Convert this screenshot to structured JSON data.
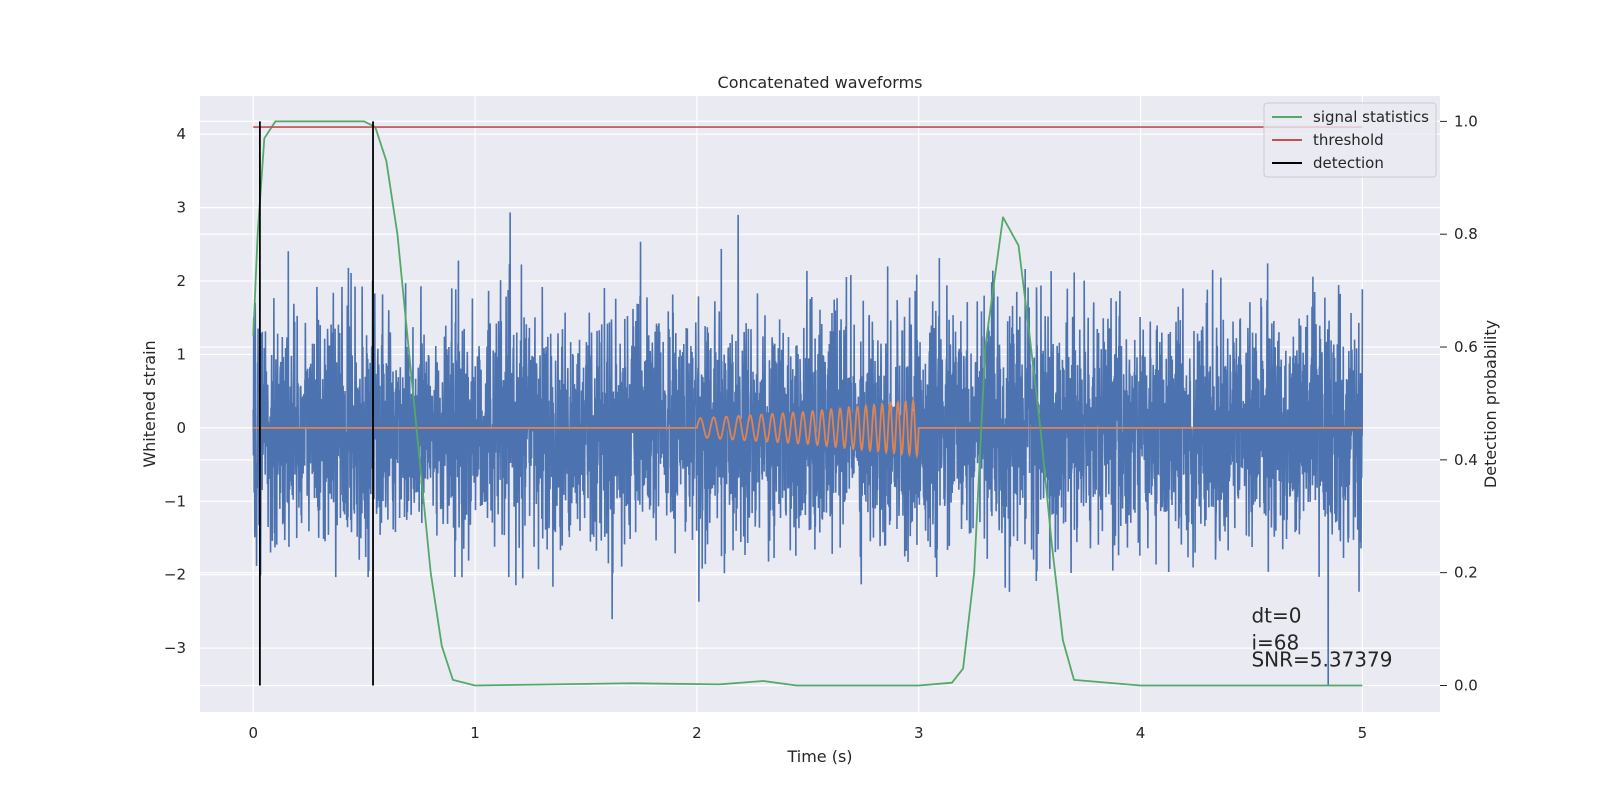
{
  "chart_data": {
    "type": "line",
    "title": "Concatenated waveforms",
    "xlabel": "Time (s)",
    "ylabel": "Whitened strain",
    "y2label": "Detection probability",
    "xlim": [
      -0.24,
      5.35
    ],
    "ylim": [
      -3.87,
      4.52
    ],
    "y2lim": [
      -0.047,
      1.045
    ],
    "xticks": [
      0,
      1,
      2,
      3,
      4,
      5
    ],
    "yticks": [
      -3,
      -2,
      -1,
      0,
      1,
      2,
      3,
      4
    ],
    "y2ticks": [
      0.0,
      0.2,
      0.4,
      0.6,
      0.8,
      1.0
    ],
    "xtick_labels": [
      "0",
      "1",
      "2",
      "3",
      "4",
      "5"
    ],
    "ytick_labels": [
      "−3",
      "−2",
      "−1",
      "0",
      "1",
      "2",
      "3",
      "4"
    ],
    "y2tick_labels": [
      "0.0",
      "0.2",
      "0.4",
      "0.6",
      "0.8",
      "1.0"
    ],
    "grid": true,
    "legend_position": "top-right",
    "colors": {
      "strain": "#4c72b0",
      "injection": "#dd8452",
      "signal_statistics": "#55a868",
      "threshold": "#c44e52",
      "detection": "#000000",
      "axes_background": "#eaeaf2",
      "grid": "#ffffff"
    },
    "series": [
      {
        "name": "",
        "axis": "left",
        "description": "whitened strain noise, time 0 to 5 s, amplitude up to about ±3.5",
        "x_range": [
          0,
          5
        ],
        "typical_peak": 2.3,
        "max_abs": 3.5
      },
      {
        "name": "",
        "axis": "left",
        "description": "injected chirp waveform between 2 s and 3 s",
        "x": [
          0,
          2,
          2.5,
          3,
          5
        ],
        "y": [
          0,
          0.13,
          0.22,
          0.38,
          0
        ],
        "chirp_start": 2,
        "chirp_end": 3
      },
      {
        "name": "signal statistics",
        "axis": "right",
        "x": [
          0,
          0.02,
          0.05,
          0.1,
          0.5,
          0.55,
          0.6,
          0.65,
          0.7,
          0.75,
          0.8,
          0.85,
          0.9,
          1.0,
          1.7,
          2.1,
          2.3,
          2.45,
          3.0,
          3.15,
          3.2,
          3.25,
          3.3,
          3.38,
          3.45,
          3.5,
          3.55,
          3.6,
          3.65,
          3.7,
          4.0,
          5.0
        ],
        "y": [
          0.62,
          0.8,
          0.97,
          1.0,
          1.0,
          0.99,
          0.93,
          0.8,
          0.6,
          0.4,
          0.2,
          0.07,
          0.01,
          0.0,
          0.004,
          0.002,
          0.008,
          0.0,
          0.0,
          0.005,
          0.03,
          0.2,
          0.6,
          0.83,
          0.78,
          0.62,
          0.45,
          0.25,
          0.08,
          0.01,
          0.0,
          0.0
        ]
      },
      {
        "name": "threshold",
        "axis": "right",
        "x": [
          0,
          5
        ],
        "y": [
          0.99,
          0.99
        ]
      },
      {
        "name": "detection",
        "axis": "right",
        "type": "vertical-lines",
        "x": [
          0.03,
          0.54
        ],
        "y": [
          0.0,
          1.0
        ]
      }
    ],
    "annotations": [
      {
        "text": "dt=0",
        "x": 4.5,
        "y": -2.65
      },
      {
        "text": "i=68",
        "x": 4.5,
        "y": -3.02
      },
      {
        "text": "SNR=5.37379",
        "x": 4.5,
        "y": -3.25
      }
    ]
  }
}
